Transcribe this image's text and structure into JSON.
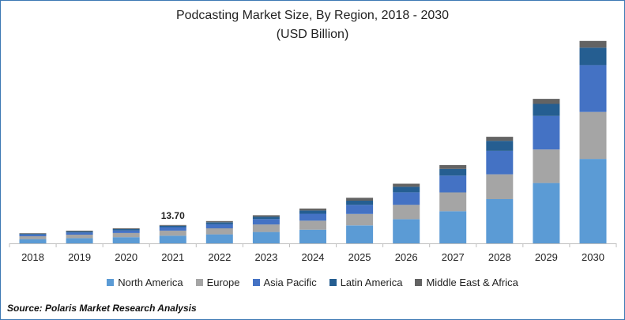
{
  "chart_data": {
    "type": "bar",
    "stacked": true,
    "title": "Podcasting Market Size, By Region, 2018 - 2030",
    "subtitle": "(USD Billion)",
    "categories": [
      "2018",
      "2019",
      "2020",
      "2021",
      "2022",
      "2023",
      "2024",
      "2025",
      "2026",
      "2027",
      "2028",
      "2029",
      "2030"
    ],
    "series": [
      {
        "name": "North America",
        "color": "#5b9bd5",
        "values": [
          3.2,
          3.9,
          4.6,
          5.7,
          6.7,
          8.5,
          10.2,
          13.4,
          18.0,
          24.0,
          33.0,
          45.0,
          63.0
        ]
      },
      {
        "name": "Europe",
        "color": "#a5a5a5",
        "values": [
          2.1,
          2.6,
          3.1,
          3.8,
          4.5,
          5.6,
          6.7,
          8.5,
          10.8,
          14.0,
          18.5,
          25.0,
          35.0
        ]
      },
      {
        "name": "Asia Pacific",
        "color": "#4472c4",
        "values": [
          1.3,
          1.6,
          1.9,
          2.6,
          3.1,
          4.0,
          5.2,
          6.8,
          9.3,
          12.5,
          17.5,
          25.0,
          35.0
        ]
      },
      {
        "name": "Latin America",
        "color": "#255e91",
        "values": [
          0.6,
          0.8,
          1.0,
          1.0,
          1.4,
          1.8,
          2.4,
          3.1,
          4.1,
          5.0,
          7.5,
          9.0,
          13.0
        ]
      },
      {
        "name": "Middle East & Africa",
        "color": "#636363",
        "values": [
          0.4,
          0.6,
          0.6,
          0.6,
          0.9,
          1.1,
          1.5,
          2.2,
          2.3,
          2.9,
          3.0,
          3.8,
          5.0
        ]
      }
    ],
    "annotations": [
      {
        "category": "2021",
        "text": "13.70"
      }
    ],
    "ylim": [
      0,
      155
    ],
    "grid": false,
    "legend_position": "bottom"
  },
  "source": "Source: Polaris  Market Research Analysis"
}
